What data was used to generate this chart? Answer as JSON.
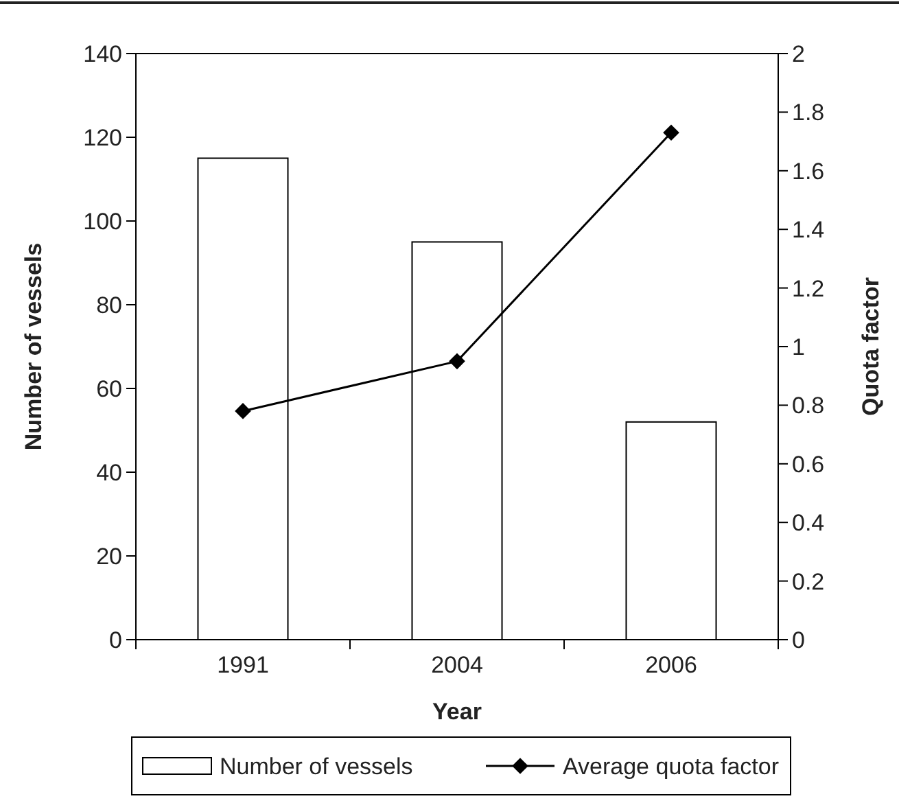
{
  "chart_data": {
    "type": "bar",
    "categories": [
      "1991",
      "2004",
      "2006"
    ],
    "xlabel": "Year",
    "ylabel": "Number of vessels",
    "y2label": "Quota factor",
    "series": [
      {
        "name": "Number of vessels",
        "color": "#ffffff",
        "values": [
          115,
          95,
          52
        ]
      },
      {
        "name": "Average quota factor",
        "type": "line",
        "axis": "y2",
        "color": "#000000",
        "values": [
          0.78,
          0.95,
          1.73
        ]
      }
    ],
    "ylim": [
      0,
      140
    ],
    "yticks": [
      0,
      20,
      40,
      60,
      80,
      100,
      120,
      140
    ],
    "y2lim": [
      0,
      2
    ],
    "y2ticks": [
      0,
      0.2,
      0.4,
      0.6,
      0.8,
      1,
      1.2,
      1.4,
      1.6,
      1.8,
      2
    ],
    "marker": "diamond",
    "legend": "bottom",
    "grid": false
  }
}
